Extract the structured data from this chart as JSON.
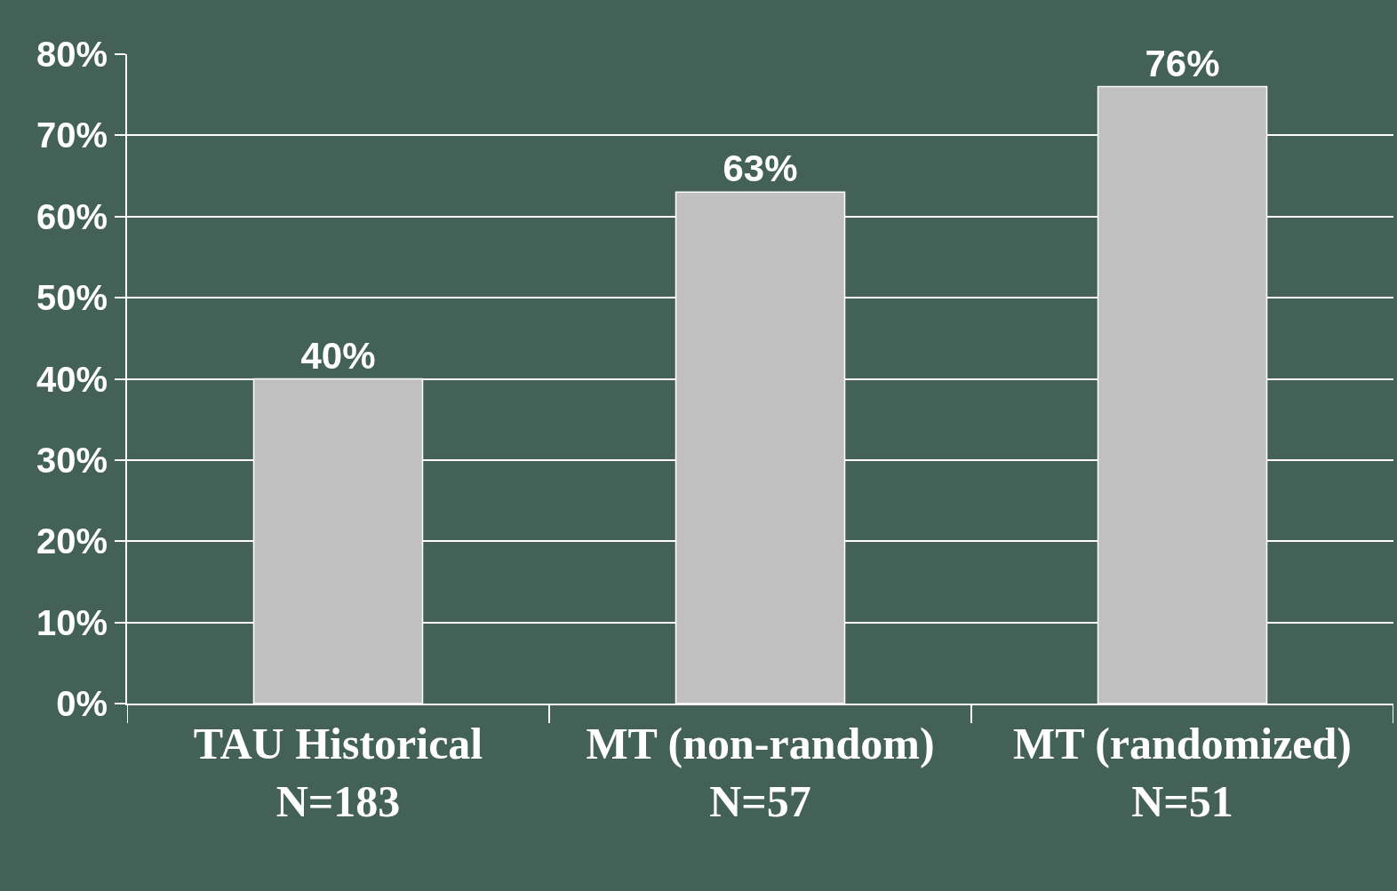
{
  "chart_data": {
    "type": "bar",
    "categories": [
      "TAU Historical\nN=183",
      "MT (non-random)\nN=57",
      "MT (randomized)\nN=51"
    ],
    "values": [
      40,
      63,
      76
    ],
    "value_labels": [
      "40%",
      "63%",
      "76%"
    ],
    "color": "#c0c0c0",
    "ylim": [
      0,
      80
    ],
    "yticks": [
      {
        "value": 0,
        "label": "0%"
      },
      {
        "value": 10,
        "label": "10%"
      },
      {
        "value": 20,
        "label": "20%"
      },
      {
        "value": 30,
        "label": "30%"
      },
      {
        "value": 40,
        "label": "40%"
      },
      {
        "value": 50,
        "label": "50%"
      },
      {
        "value": 60,
        "label": "60%"
      },
      {
        "value": 70,
        "label": "70%"
      },
      {
        "value": 80,
        "label": "80%"
      }
    ],
    "grid": "y",
    "legend": false
  }
}
